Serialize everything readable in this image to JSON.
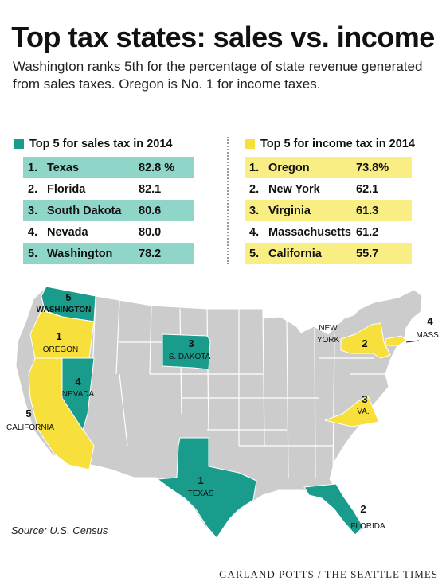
{
  "title": "Top tax states: sales vs. income",
  "subtitle": "Washington ranks 5th for the percentage of state revenue generated from sales taxes. Oregon is No. 1 for income taxes.",
  "colors": {
    "sales": "#199c8b",
    "sales_light": "#8fd6c8",
    "income": "#f7df3c",
    "income_light": "#f9ee84",
    "other": "#cccccc"
  },
  "sales": {
    "heading": "Top 5 for sales tax in 2014",
    "rows": [
      {
        "rank": "1.",
        "state": "Texas",
        "value": "82.8 %"
      },
      {
        "rank": "2.",
        "state": "Florida",
        "value": "82.1"
      },
      {
        "rank": "3.",
        "state": "South Dakota",
        "value": "80.6"
      },
      {
        "rank": "4.",
        "state": "Nevada",
        "value": "80.0"
      },
      {
        "rank": "5.",
        "state": "Washington",
        "value": "78.2"
      }
    ]
  },
  "income": {
    "heading": "Top 5 for income tax in 2014",
    "rows": [
      {
        "rank": "1.",
        "state": "Oregon",
        "value": "73.8%"
      },
      {
        "rank": "2.",
        "state": "New York",
        "value": "62.1"
      },
      {
        "rank": "3.",
        "state": "Virginia",
        "value": "61.3"
      },
      {
        "rank": "4.",
        "state": "Massachusetts",
        "value": "61.2"
      },
      {
        "rank": "5.",
        "state": "California",
        "value": "55.7"
      }
    ]
  },
  "map": {
    "labels": {
      "wa_num": "5",
      "wa_name": "WASHINGTON",
      "or_num": "1",
      "or_name": "OREGON",
      "nv_num": "4",
      "nv_name": "NEVADA",
      "ca_num": "5",
      "ca_name": "CALIFORNIA",
      "sd_num": "3",
      "sd_name": "S. DAKOTA",
      "tx_num": "1",
      "tx_name": "TEXAS",
      "fl_num": "2",
      "fl_name": "FLORIDA",
      "va_num": "3",
      "va_name": "VA.",
      "ny_name1": "NEW",
      "ny_name2": "YORK",
      "ny_num": "2",
      "ma_num": "4",
      "ma_name": "MASS."
    }
  },
  "source": "Source: U.S. Census",
  "credit": "GARLAND POTTS / THE SEATTLE TIMES"
}
